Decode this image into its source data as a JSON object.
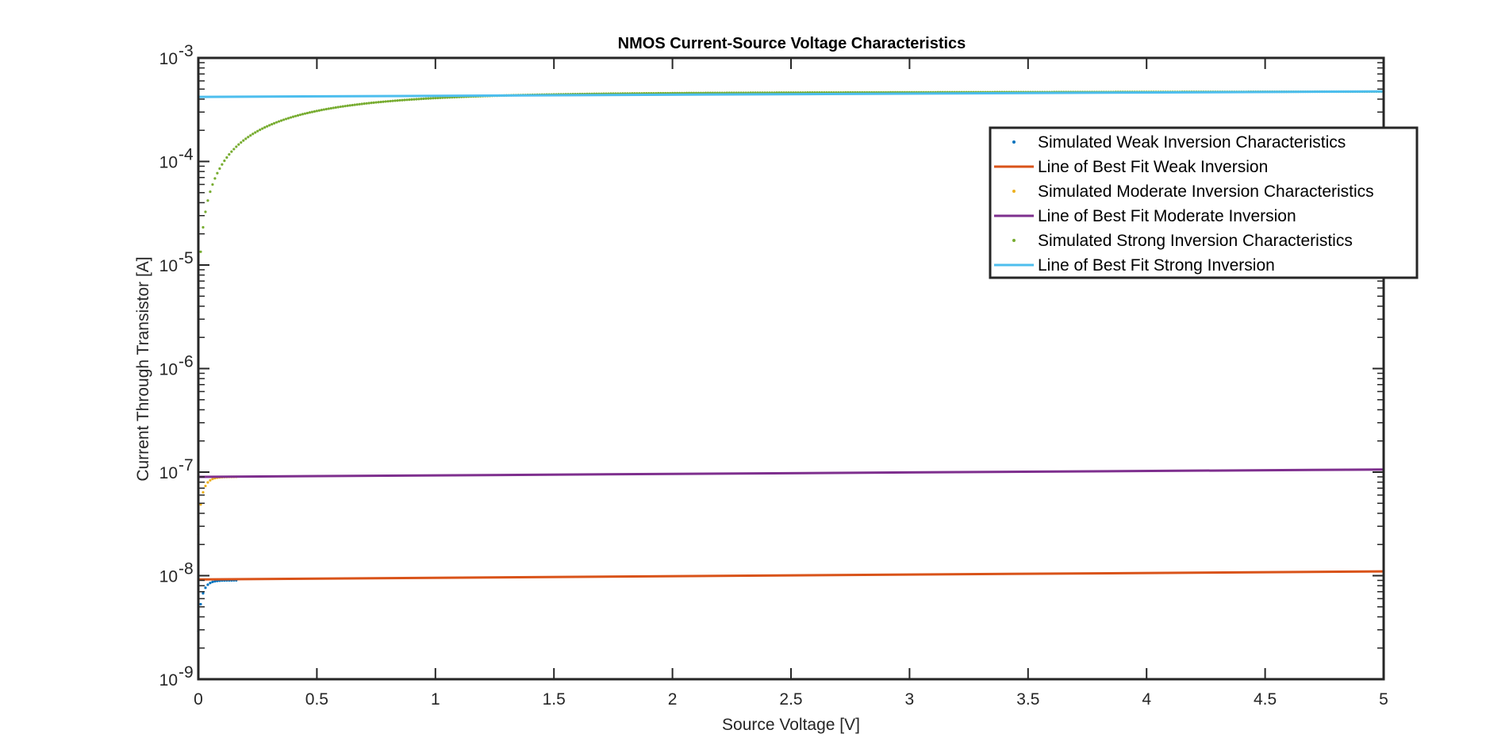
{
  "chart_data": {
    "type": "scatter",
    "title": "NMOS Current-Source Voltage Characteristics",
    "xlabel": "Source Voltage [V]",
    "ylabel": "Current Through Transistor [A]",
    "yscale": "log",
    "xlim": [
      0,
      5
    ],
    "ylim": [
      1e-09,
      0.001
    ],
    "xticks": [
      0,
      0.5,
      1,
      1.5,
      2,
      2.5,
      3,
      3.5,
      4,
      4.5,
      5
    ],
    "xtick_labels": [
      "0",
      "0.5",
      "1",
      "1.5",
      "2",
      "2.5",
      "3",
      "3.5",
      "4",
      "4.5",
      "5"
    ],
    "yticks": [
      {
        "value": 1e-09,
        "base": "10",
        "exp": "-9"
      },
      {
        "value": 1e-08,
        "base": "10",
        "exp": "-8"
      },
      {
        "value": 1e-07,
        "base": "10",
        "exp": "-7"
      },
      {
        "value": 1e-06,
        "base": "10",
        "exp": "-6"
      },
      {
        "value": 1e-05,
        "base": "10",
        "exp": "-5"
      },
      {
        "value": 0.0001,
        "base": "10",
        "exp": "-4"
      },
      {
        "value": 0.001,
        "base": "10",
        "exp": "-3"
      }
    ],
    "grid": false,
    "legend_position": "top-right",
    "series": [
      {
        "name": "Simulated Weak Inversion Characteristics",
        "kind": "dots",
        "color": "#0072BD",
        "model": "saturating",
        "i_max": 9e-09,
        "i_min": 2.9e-09,
        "tau": 0.02,
        "slope": 0.04,
        "x_start": 0,
        "x_end": 0.16,
        "step": 0.01
      },
      {
        "name": "Line of Best Fit Weak Inversion",
        "kind": "line",
        "color": "#D95319",
        "model": "linear",
        "x": [
          0,
          5
        ],
        "y": [
          9.2e-09,
          1.1e-08
        ]
      },
      {
        "name": "Simulated Moderate Inversion Characteristics",
        "kind": "dots",
        "color": "#EDB120",
        "model": "saturating",
        "i_max": 9e-08,
        "i_min": 2.5e-08,
        "tau": 0.022,
        "slope": 0.04,
        "x_start": 0,
        "x_end": 0.16,
        "step": 0.01
      },
      {
        "name": "Line of Best Fit Moderate Inversion",
        "kind": "line",
        "color": "#7E2F8E",
        "model": "linear",
        "x": [
          0,
          5
        ],
        "y": [
          9e-08,
          1.06e-07
        ]
      },
      {
        "name": "Simulated Strong Inversion Characteristics",
        "kind": "dots",
        "color": "#77AC30",
        "model": "saturating",
        "i_max": 0.000455,
        "i_min": 3.5e-06,
        "tau": 0.45,
        "slope": 0.04,
        "x_start": 0,
        "x_end": 5,
        "step": 0.01
      },
      {
        "name": "Line of Best Fit Strong Inversion",
        "kind": "line",
        "color": "#4DBEEE",
        "model": "linear",
        "x": [
          0,
          5
        ],
        "y": [
          0.00042,
          0.000475
        ]
      }
    ]
  }
}
